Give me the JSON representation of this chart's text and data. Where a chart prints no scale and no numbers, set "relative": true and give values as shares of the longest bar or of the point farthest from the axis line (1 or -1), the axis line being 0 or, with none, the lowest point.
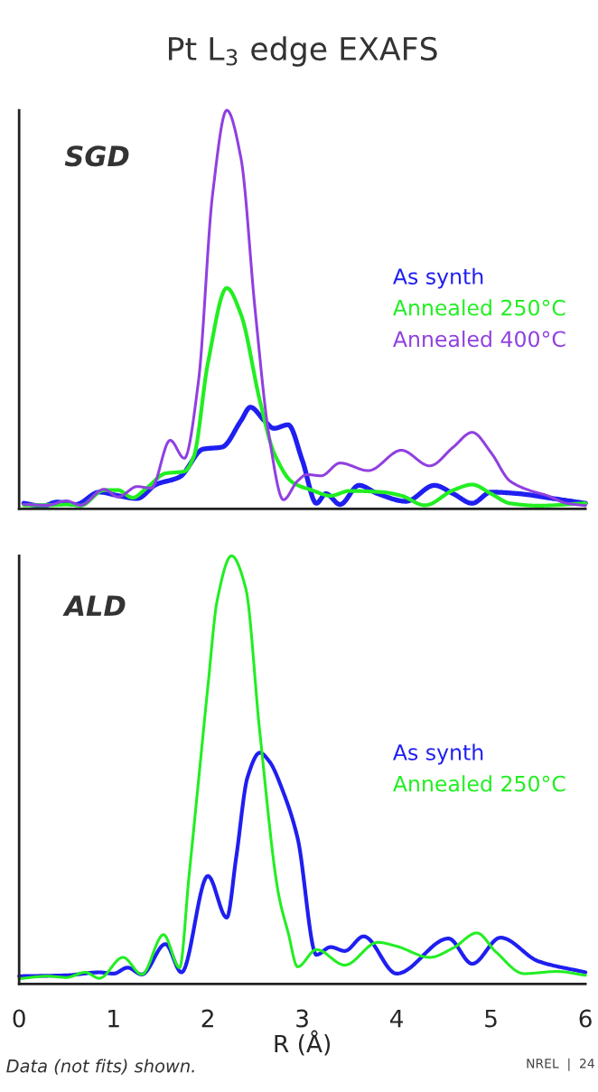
{
  "chart_data": [
    {
      "type": "line",
      "title": "Pt L$_{3}$ edge EXAFS",
      "relative": true,
      "annotations": [
        "SGD"
      ],
      "legend": "right",
      "tick_labels": false,
      "grid": false,
      "marker": "none",
      "line_style": "solid",
      "xlim": [
        0,
        6
      ],
      "xticks": [
        0,
        1,
        2,
        3,
        4,
        5,
        6
      ],
      "series": [
        {
          "name": "As synth",
          "color": "#1f1ff0",
          "x": [
            0.05,
            0.25,
            0.4,
            0.6,
            0.85,
            1.05,
            1.25,
            1.45,
            1.7,
            1.95,
            2.15,
            2.35,
            2.45,
            2.6,
            2.7,
            2.85,
            3.0,
            3.15,
            3.25,
            3.4,
            3.6,
            3.8,
            4.1,
            4.4,
            4.6,
            4.8,
            5.0,
            5.3,
            5.6,
            6.0
          ],
          "values": [
            0.014,
            0.007,
            0.017,
            0.011,
            0.042,
            0.033,
            0.026,
            0.061,
            0.08,
            0.15,
            0.155,
            0.221,
            0.255,
            0.221,
            0.202,
            0.211,
            0.122,
            0.014,
            0.038,
            0.011,
            0.059,
            0.038,
            0.019,
            0.059,
            0.038,
            0.014,
            0.042,
            0.038,
            0.028,
            0.014
          ]
        },
        {
          "name": "Annealed 250°C",
          "color": "#22ee22",
          "x": [
            0.05,
            0.3,
            0.55,
            0.65,
            0.9,
            1.05,
            1.2,
            1.35,
            1.55,
            1.75,
            1.85,
            2.0,
            2.2,
            2.35,
            2.55,
            2.7,
            2.9,
            3.1,
            3.3,
            3.5,
            3.85,
            4.05,
            4.3,
            4.6,
            4.8,
            5.0,
            5.2,
            5.5,
            6.0
          ],
          "values": [
            0.009,
            0.009,
            0.011,
            0.008,
            0.047,
            0.047,
            0.028,
            0.052,
            0.089,
            0.094,
            0.131,
            0.366,
            0.554,
            0.488,
            0.272,
            0.141,
            0.066,
            0.047,
            0.033,
            0.045,
            0.042,
            0.033,
            0.009,
            0.047,
            0.061,
            0.038,
            0.014,
            0.008,
            0.014
          ]
        },
        {
          "name": "Annealed 400°C",
          "color": "#9040e0",
          "x": [
            0.05,
            0.3,
            0.5,
            0.65,
            0.9,
            1.05,
            1.25,
            1.4,
            1.6,
            1.75,
            1.9,
            2.05,
            2.2,
            2.35,
            2.5,
            2.65,
            2.8,
            2.95,
            3.05,
            3.2,
            3.4,
            3.7,
            4.05,
            4.35,
            4.6,
            4.8,
            5.0,
            5.2,
            5.4,
            5.6,
            5.8,
            6.0
          ],
          "values": [
            0.011,
            0.009,
            0.02,
            0.009,
            0.049,
            0.03,
            0.056,
            0.052,
            0.172,
            0.127,
            0.32,
            0.79,
            1.0,
            0.88,
            0.5,
            0.18,
            0.023,
            0.07,
            0.086,
            0.083,
            0.115,
            0.096,
            0.147,
            0.108,
            0.155,
            0.192,
            0.141,
            0.07,
            0.047,
            0.033,
            0.014,
            0.008
          ]
        }
      ]
    },
    {
      "type": "line",
      "xlabel": "R (Å)",
      "relative": true,
      "annotations": [
        "ALD",
        "Data (not fits) shown.",
        "NREL  |  24"
      ],
      "legend": "right",
      "tick_labels": "x",
      "grid": false,
      "marker": "none",
      "line_style": "solid",
      "xlim": [
        0,
        6
      ],
      "xticks": [
        0,
        1,
        2,
        3,
        4,
        5,
        6
      ],
      "series": [
        {
          "name": "As synth",
          "color": "#1f1ff0",
          "x": [
            0.0,
            0.5,
            0.85,
            1.0,
            1.15,
            1.3,
            1.55,
            1.72,
            2.0,
            2.2,
            2.3,
            2.42,
            2.55,
            2.65,
            2.8,
            2.95,
            3.15,
            3.3,
            3.45,
            3.65,
            4.0,
            4.55,
            4.8,
            5.1,
            5.5,
            6.0
          ],
          "values": [
            0.018,
            0.02,
            0.027,
            0.024,
            0.038,
            0.022,
            0.093,
            0.027,
            0.252,
            0.155,
            0.296,
            0.483,
            0.54,
            0.52,
            0.447,
            0.341,
            0.068,
            0.086,
            0.077,
            0.111,
            0.024,
            0.106,
            0.047,
            0.108,
            0.053,
            0.027
          ]
        },
        {
          "name": "Annealed 250°C",
          "color": "#22ee22",
          "x": [
            0.0,
            0.3,
            0.5,
            0.7,
            0.85,
            1.1,
            1.3,
            1.53,
            1.7,
            1.8,
            1.9,
            2.0,
            2.1,
            2.25,
            2.4,
            2.55,
            2.75,
            2.85,
            2.95,
            3.15,
            3.45,
            3.8,
            4.0,
            4.35,
            4.6,
            4.85,
            5.05,
            5.35,
            5.7,
            6.0
          ],
          "values": [
            0.012,
            0.018,
            0.015,
            0.027,
            0.013,
            0.062,
            0.022,
            0.115,
            0.038,
            0.252,
            0.473,
            0.695,
            0.898,
            1.0,
            0.925,
            0.588,
            0.208,
            0.12,
            0.04,
            0.08,
            0.044,
            0.097,
            0.088,
            0.062,
            0.084,
            0.119,
            0.075,
            0.024,
            0.029,
            0.02
          ]
        }
      ]
    }
  ]
}
